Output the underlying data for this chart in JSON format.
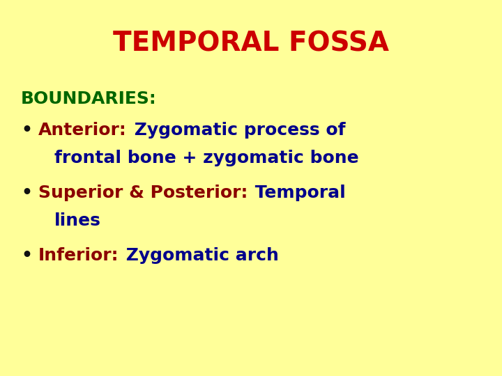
{
  "title": "TEMPORAL FOSSA",
  "title_color": "#cc0000",
  "title_fontsize": 28,
  "background_color": "#ffff99",
  "boundaries_label": "BOUNDARIES:",
  "boundaries_color": "#006600",
  "boundaries_fontsize": 18,
  "bullet_fontsize": 18,
  "bullets": [
    {
      "label": "Anterior:",
      "label_color": "#8B0000",
      "line1_rest": " Zygomatic process of",
      "line2": "frontal bone + zygomatic bone",
      "rest_color": "#00008B"
    },
    {
      "label": "Superior & Posterior:",
      "label_color": "#8B0000",
      "line1_rest": " Temporal",
      "line2": "lines",
      "rest_color": "#00008B"
    },
    {
      "label": "Inferior:",
      "label_color": "#8B0000",
      "line1_rest": " Zygomatic arch",
      "line2": "",
      "rest_color": "#00008B"
    }
  ]
}
